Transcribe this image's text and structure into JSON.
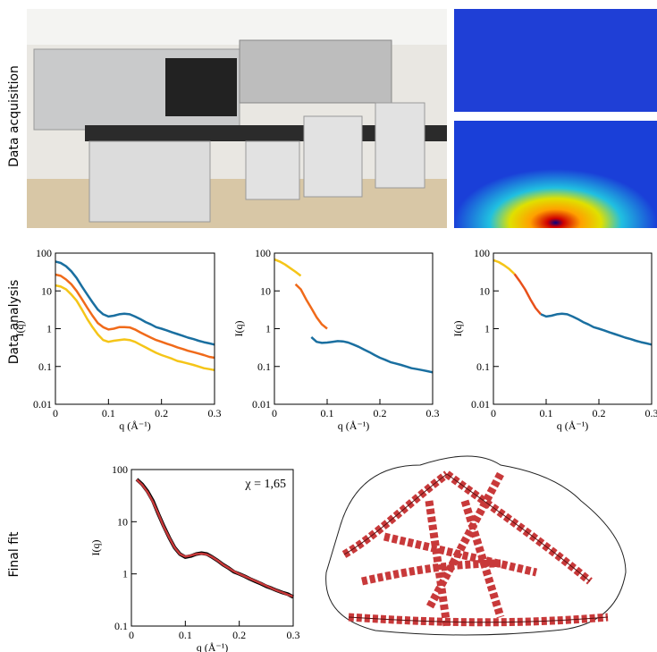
{
  "row_labels": [
    "Data acquisition",
    "Data analysis",
    "Final fit"
  ],
  "chart_data": [
    {
      "type": "line",
      "x_label": "q (Å⁻¹)",
      "y_label": "I(q)",
      "log_y": true,
      "xlim": [
        0,
        0.3
      ],
      "xticks": [
        0,
        0.1,
        0.2,
        0.3
      ],
      "ylim": [
        0.01,
        100
      ],
      "yticks": [
        0.01,
        0.1,
        1,
        10,
        100
      ],
      "x": [
        0,
        0.01,
        0.02,
        0.03,
        0.04,
        0.05,
        0.06,
        0.07,
        0.08,
        0.09,
        0.1,
        0.11,
        0.12,
        0.13,
        0.14,
        0.15,
        0.16,
        0.17,
        0.18,
        0.19,
        0.2,
        0.21,
        0.22,
        0.23,
        0.24,
        0.25,
        0.26,
        0.27,
        0.28,
        0.29,
        0.3
      ],
      "series": [
        {
          "color": "#1a6fa0",
          "values": [
            60,
            55,
            45,
            33,
            22,
            13,
            8,
            5,
            3.2,
            2.4,
            2.1,
            2.2,
            2.4,
            2.5,
            2.4,
            2.1,
            1.8,
            1.5,
            1.3,
            1.1,
            1.0,
            0.9,
            0.8,
            0.72,
            0.65,
            0.58,
            0.53,
            0.48,
            0.44,
            0.41,
            0.38
          ]
        },
        {
          "color": "#f06a1a",
          "values": [
            27,
            25,
            20,
            15,
            10,
            6,
            3.6,
            2.2,
            1.4,
            1.1,
            0.95,
            1.0,
            1.1,
            1.1,
            1.08,
            0.95,
            0.8,
            0.68,
            0.58,
            0.5,
            0.45,
            0.4,
            0.36,
            0.32,
            0.29,
            0.26,
            0.24,
            0.22,
            0.2,
            0.18,
            0.17
          ]
        },
        {
          "color": "#f5c518",
          "values": [
            14,
            13,
            11,
            8,
            5.5,
            3.2,
            1.8,
            1.1,
            0.7,
            0.5,
            0.45,
            0.48,
            0.5,
            0.52,
            0.5,
            0.45,
            0.38,
            0.32,
            0.27,
            0.23,
            0.2,
            0.18,
            0.16,
            0.14,
            0.13,
            0.12,
            0.11,
            0.1,
            0.09,
            0.085,
            0.08
          ]
        }
      ]
    },
    {
      "type": "line",
      "x_label": "q (Å⁻¹)",
      "y_label": "I(q)",
      "log_y": true,
      "xlim": [
        0,
        0.3
      ],
      "xticks": [
        0,
        0.1,
        0.2,
        0.3
      ],
      "ylim": [
        0.01,
        100
      ],
      "yticks": [
        0.01,
        0.1,
        1,
        10,
        100
      ],
      "series": [
        {
          "color": "#f5c518",
          "x": [
            0,
            0.01,
            0.02,
            0.03,
            0.04,
            0.05
          ],
          "values": [
            68,
            60,
            50,
            40,
            32,
            25
          ]
        },
        {
          "color": "#f06a1a",
          "x": [
            0.04,
            0.05,
            0.06,
            0.07,
            0.08,
            0.09,
            0.1
          ],
          "values": [
            15,
            11,
            6,
            3.5,
            2,
            1.3,
            1.0
          ]
        },
        {
          "color": "#1a6fa0",
          "x": [
            0.07,
            0.08,
            0.09,
            0.1,
            0.11,
            0.12,
            0.13,
            0.14,
            0.15,
            0.16,
            0.17,
            0.18,
            0.19,
            0.2,
            0.21,
            0.22,
            0.23,
            0.24,
            0.25,
            0.26,
            0.27,
            0.28,
            0.29,
            0.3
          ],
          "values": [
            0.6,
            0.45,
            0.42,
            0.43,
            0.45,
            0.47,
            0.46,
            0.43,
            0.38,
            0.33,
            0.28,
            0.24,
            0.2,
            0.17,
            0.15,
            0.13,
            0.12,
            0.11,
            0.1,
            0.09,
            0.085,
            0.08,
            0.075,
            0.07
          ]
        }
      ]
    },
    {
      "type": "line",
      "x_label": "q (Å⁻¹)",
      "y_label": "I(q)",
      "log_y": true,
      "xlim": [
        0,
        0.3
      ],
      "xticks": [
        0,
        0.1,
        0.2,
        0.3
      ],
      "ylim": [
        0.01,
        100
      ],
      "yticks": [
        0.01,
        0.1,
        1,
        10,
        100
      ],
      "series": [
        {
          "color": "#f5c518",
          "x": [
            0,
            0.01,
            0.02,
            0.03,
            0.04
          ],
          "values": [
            65,
            58,
            48,
            38,
            28
          ]
        },
        {
          "color": "#e8501a",
          "x": [
            0.04,
            0.05,
            0.06,
            0.07,
            0.08,
            0.09
          ],
          "values": [
            28,
            18,
            11,
            6,
            3.5,
            2.4
          ]
        },
        {
          "color": "#1a6fa0",
          "x": [
            0.09,
            0.1,
            0.11,
            0.12,
            0.13,
            0.14,
            0.15,
            0.16,
            0.17,
            0.18,
            0.19,
            0.2,
            0.21,
            0.22,
            0.23,
            0.24,
            0.25,
            0.26,
            0.27,
            0.28,
            0.29,
            0.3
          ],
          "values": [
            2.4,
            2.1,
            2.2,
            2.4,
            2.5,
            2.4,
            2.1,
            1.8,
            1.5,
            1.3,
            1.1,
            1.0,
            0.9,
            0.8,
            0.72,
            0.65,
            0.58,
            0.53,
            0.48,
            0.44,
            0.41,
            0.38
          ]
        }
      ]
    },
    {
      "type": "line",
      "x_label": "q (Å⁻¹)",
      "y_label": "I(q)",
      "log_y": true,
      "annotation": "χ = 1,65",
      "xlim": [
        0,
        0.3
      ],
      "xticks": [
        0,
        0.1,
        0.2,
        0.3
      ],
      "ylim": [
        0.1,
        100
      ],
      "yticks": [
        0.1,
        1,
        10,
        100
      ],
      "x": [
        0.01,
        0.02,
        0.03,
        0.04,
        0.05,
        0.06,
        0.07,
        0.08,
        0.09,
        0.1,
        0.11,
        0.12,
        0.13,
        0.14,
        0.15,
        0.16,
        0.17,
        0.18,
        0.19,
        0.2,
        0.21,
        0.22,
        0.23,
        0.24,
        0.25,
        0.26,
        0.27,
        0.28,
        0.29,
        0.3
      ],
      "series": [
        {
          "color": "#000000",
          "values": [
            65,
            52,
            38,
            25,
            14,
            8.2,
            5,
            3.2,
            2.4,
            2.1,
            2.2,
            2.4,
            2.5,
            2.4,
            2.1,
            1.8,
            1.5,
            1.3,
            1.1,
            1.0,
            0.9,
            0.8,
            0.72,
            0.65,
            0.58,
            0.53,
            0.48,
            0.44,
            0.41,
            0.36
          ]
        },
        {
          "color": "#c8393a",
          "values": [
            64,
            51,
            37,
            24,
            14,
            8,
            5,
            3.2,
            2.4,
            2.15,
            2.25,
            2.4,
            2.45,
            2.35,
            2.1,
            1.8,
            1.5,
            1.3,
            1.12,
            1.0,
            0.9,
            0.81,
            0.73,
            0.66,
            0.59,
            0.53,
            0.48,
            0.44,
            0.4,
            0.37
          ]
        }
      ]
    }
  ]
}
